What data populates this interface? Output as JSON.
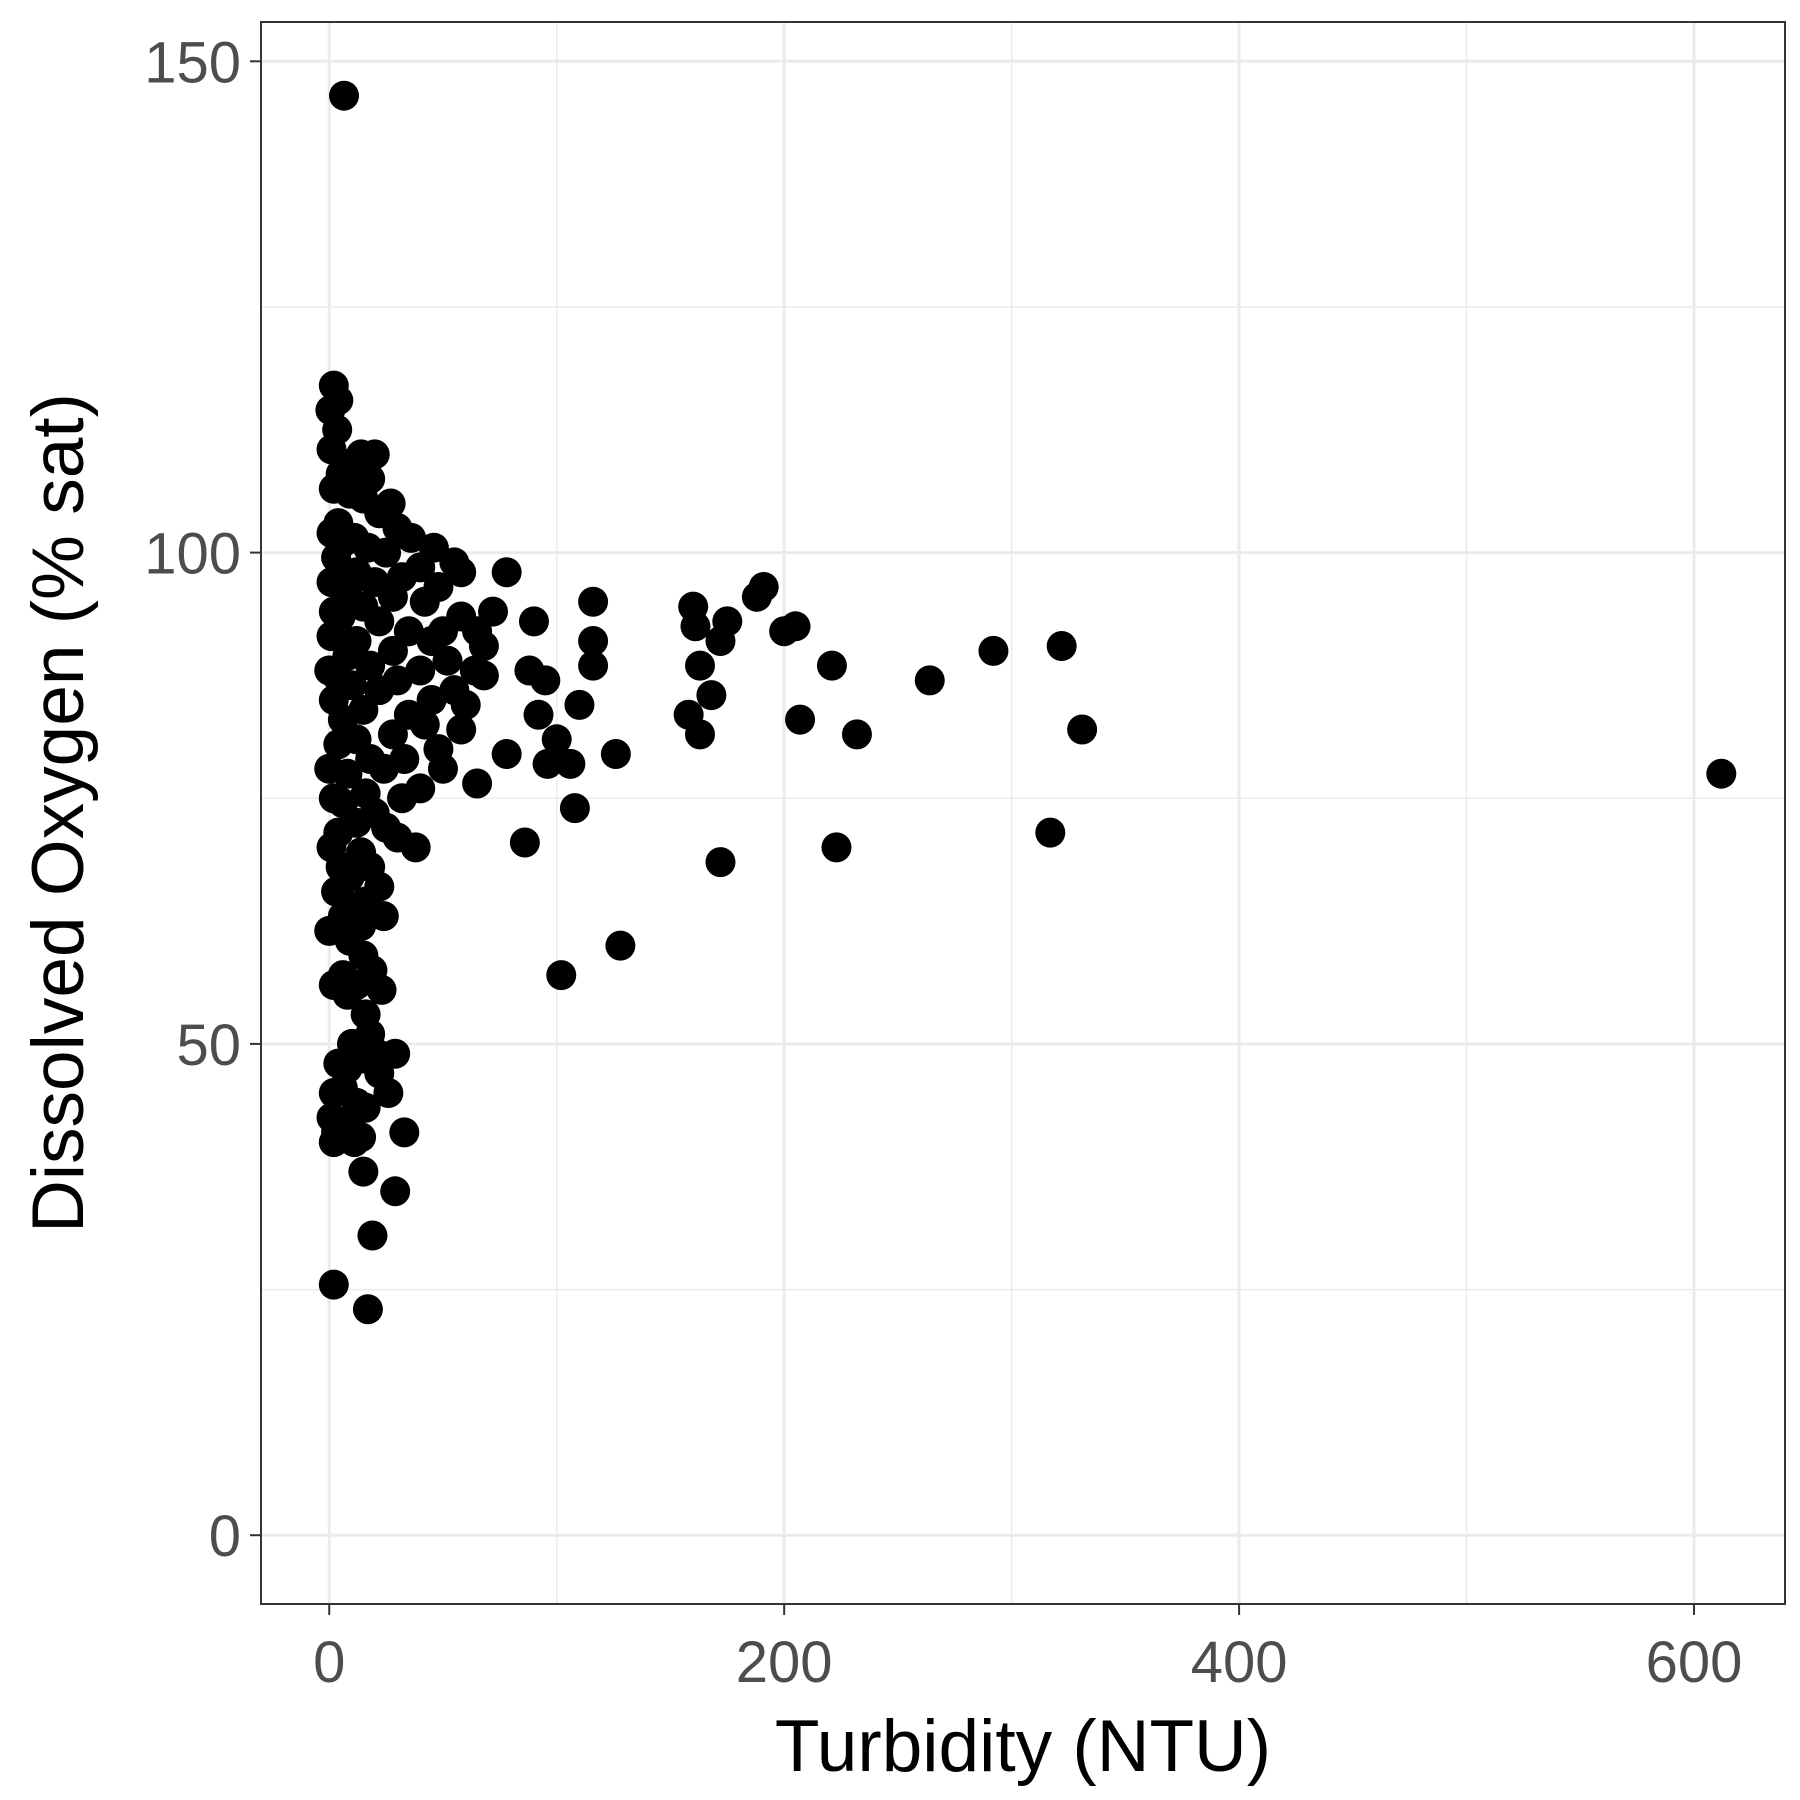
{
  "chart_data": {
    "type": "scatter",
    "xlabel": "Turbidity (NTU)",
    "ylabel": "Dissolved Oxygen (% sat)",
    "xlim": [
      -30,
      640
    ],
    "ylim": [
      -7,
      154
    ],
    "x_ticks": [
      0,
      200,
      400,
      600
    ],
    "y_ticks": [
      0,
      50,
      100,
      150
    ],
    "x_minor": [
      100,
      300,
      500
    ],
    "y_minor": [
      25,
      75,
      125
    ],
    "grid": true,
    "legend": "none",
    "point_color": "#000000",
    "panel_border_color": "#333333",
    "grid_color": "#ebebeb",
    "points": [
      [
        6.5,
        146.5
      ],
      [
        2,
        117
      ],
      [
        4,
        115.5
      ],
      [
        0.5,
        114.5
      ],
      [
        3.5,
        112.5
      ],
      [
        1,
        110.5
      ],
      [
        14,
        110
      ],
      [
        20,
        110
      ],
      [
        8,
        109
      ],
      [
        12,
        108.5
      ],
      [
        5,
        108
      ],
      [
        18,
        107.5
      ],
      [
        2,
        106.5
      ],
      [
        9,
        106
      ],
      [
        15,
        105.5
      ],
      [
        27,
        105
      ],
      [
        22,
        104
      ],
      [
        4,
        103
      ],
      [
        30,
        102.5
      ],
      [
        1,
        102
      ],
      [
        11,
        101.5
      ],
      [
        36,
        101.5
      ],
      [
        6,
        101
      ],
      [
        17,
        100.5
      ],
      [
        46,
        100.5
      ],
      [
        25,
        100
      ],
      [
        3,
        99.5
      ],
      [
        55,
        99
      ],
      [
        40,
        98.5
      ],
      [
        12,
        98
      ],
      [
        78,
        98
      ],
      [
        58,
        98
      ],
      [
        32,
        97.5
      ],
      [
        1,
        97
      ],
      [
        20,
        97
      ],
      [
        48,
        96.5
      ],
      [
        8,
        96
      ],
      [
        28,
        95.5
      ],
      [
        42,
        95
      ],
      [
        116,
        95
      ],
      [
        15,
        94.5
      ],
      [
        160,
        94.5
      ],
      [
        188,
        95.5
      ],
      [
        191,
        96.5
      ],
      [
        2,
        94
      ],
      [
        72,
        94
      ],
      [
        5,
        93.5
      ],
      [
        58,
        93.5
      ],
      [
        90,
        93
      ],
      [
        175,
        93
      ],
      [
        22,
        93
      ],
      [
        161,
        92.5
      ],
      [
        35,
        92
      ],
      [
        50,
        92
      ],
      [
        65,
        92
      ],
      [
        200,
        92
      ],
      [
        205,
        92.5
      ],
      [
        1,
        91.5
      ],
      [
        12,
        91
      ],
      [
        45,
        91
      ],
      [
        116,
        91
      ],
      [
        172,
        91
      ],
      [
        68,
        90.5
      ],
      [
        28,
        90
      ],
      [
        322,
        90.5
      ],
      [
        292,
        90
      ],
      [
        8,
        89.5
      ],
      [
        52,
        89
      ],
      [
        18,
        88.5
      ],
      [
        163,
        88.5
      ],
      [
        221,
        88.5
      ],
      [
        116,
        88.5
      ],
      [
        0,
        88
      ],
      [
        40,
        88
      ],
      [
        64,
        88
      ],
      [
        88,
        88
      ],
      [
        3,
        87.5
      ],
      [
        68,
        87.5
      ],
      [
        30,
        87
      ],
      [
        95,
        87
      ],
      [
        264,
        87
      ],
      [
        10,
        86.5
      ],
      [
        55,
        86
      ],
      [
        22,
        86
      ],
      [
        168,
        85.5
      ],
      [
        2,
        85
      ],
      [
        45,
        85
      ],
      [
        110,
        84.5
      ],
      [
        60,
        84.5
      ],
      [
        15,
        84
      ],
      [
        35,
        83.5
      ],
      [
        158,
        83.5
      ],
      [
        92,
        83.5
      ],
      [
        207,
        83
      ],
      [
        6,
        83
      ],
      [
        42,
        82.5
      ],
      [
        58,
        82
      ],
      [
        331,
        82
      ],
      [
        28,
        81.5
      ],
      [
        12,
        81
      ],
      [
        163,
        81.5
      ],
      [
        232,
        81.5
      ],
      [
        100,
        81
      ],
      [
        4,
        80.5
      ],
      [
        48,
        80
      ],
      [
        78,
        79.5
      ],
      [
        126,
        79.5
      ],
      [
        18,
        79
      ],
      [
        33,
        79
      ],
      [
        96,
        78.5
      ],
      [
        106,
        78.5
      ],
      [
        0,
        78
      ],
      [
        24,
        78
      ],
      [
        50,
        78
      ],
      [
        8,
        77.5
      ],
      [
        612,
        77.5
      ],
      [
        65,
        76.5
      ],
      [
        40,
        76
      ],
      [
        16,
        75.5
      ],
      [
        2,
        75
      ],
      [
        32,
        75
      ],
      [
        6,
        74.5
      ],
      [
        108,
        74
      ],
      [
        20,
        73.5
      ],
      [
        12,
        72.5
      ],
      [
        25,
        72
      ],
      [
        4,
        71.5
      ],
      [
        30,
        71
      ],
      [
        317,
        71.5
      ],
      [
        38,
        70
      ],
      [
        86,
        70.5
      ],
      [
        223,
        70
      ],
      [
        1,
        70
      ],
      [
        14,
        69.5
      ],
      [
        172,
        68.5
      ],
      [
        5,
        68
      ],
      [
        18,
        68
      ],
      [
        9,
        67
      ],
      [
        22,
        66
      ],
      [
        3,
        65.5
      ],
      [
        16,
        64.5
      ],
      [
        11,
        64
      ],
      [
        6,
        63
      ],
      [
        24,
        63
      ],
      [
        14,
        62
      ],
      [
        0,
        61.5
      ],
      [
        9,
        60.5
      ],
      [
        128,
        60
      ],
      [
        15,
        59
      ],
      [
        19,
        57.5
      ],
      [
        6,
        57
      ],
      [
        102,
        57
      ],
      [
        2,
        56
      ],
      [
        12,
        56
      ],
      [
        23,
        55.5
      ],
      [
        8,
        55
      ],
      [
        16,
        53
      ],
      [
        18,
        51
      ],
      [
        10,
        50
      ],
      [
        21,
        49
      ],
      [
        14,
        48.5
      ],
      [
        29,
        49
      ],
      [
        4,
        48
      ],
      [
        8,
        47.5
      ],
      [
        22,
        47
      ],
      [
        6,
        45.5
      ],
      [
        26,
        45
      ],
      [
        2,
        45
      ],
      [
        12,
        44
      ],
      [
        16,
        43.5
      ],
      [
        1,
        42.5
      ],
      [
        5,
        42
      ],
      [
        9,
        41.5
      ],
      [
        3,
        41
      ],
      [
        33,
        41
      ],
      [
        14,
        40.5
      ],
      [
        2,
        40
      ],
      [
        11,
        40
      ],
      [
        15,
        37
      ],
      [
        29,
        35
      ],
      [
        19,
        30.5
      ],
      [
        2,
        25.5
      ],
      [
        17,
        23
      ]
    ]
  }
}
